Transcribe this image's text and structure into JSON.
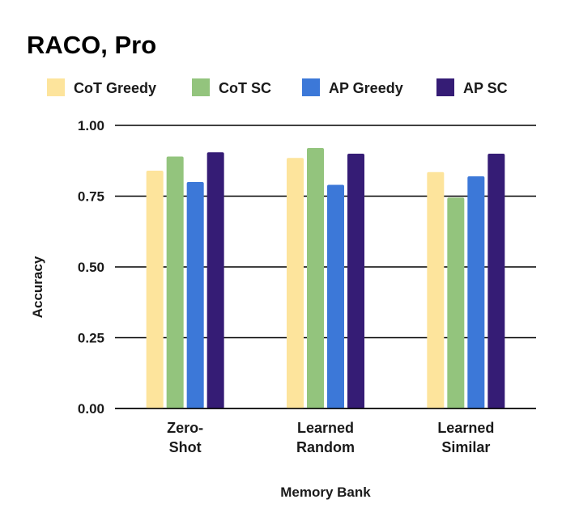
{
  "chart_data": {
    "type": "bar",
    "title": "RACO, Pro",
    "xlabel": "Memory Bank",
    "ylabel": "Accuracy",
    "ylim": [
      0,
      1
    ],
    "yticks": [
      "0.00",
      "0.25",
      "0.50",
      "0.75",
      "1.00"
    ],
    "ytick_values": [
      0,
      0.25,
      0.5,
      0.75,
      1.0
    ],
    "grid": true,
    "legend_position": "top",
    "categories": [
      [
        "Zero-",
        "Shot"
      ],
      [
        "Learned",
        "Random"
      ],
      [
        "Learned",
        "Similar"
      ]
    ],
    "series": [
      {
        "name": "CoT Greedy",
        "color": "#fde49c",
        "values": [
          0.84,
          0.885,
          0.835
        ]
      },
      {
        "name": "CoT SC",
        "color": "#93c47d",
        "values": [
          0.89,
          0.92,
          0.745
        ]
      },
      {
        "name": "AP Greedy",
        "color": "#3c78d8",
        "values": [
          0.8,
          0.79,
          0.82
        ]
      },
      {
        "name": "AP SC",
        "color": "#351c75",
        "values": [
          0.905,
          0.9,
          0.9
        ]
      }
    ]
  }
}
